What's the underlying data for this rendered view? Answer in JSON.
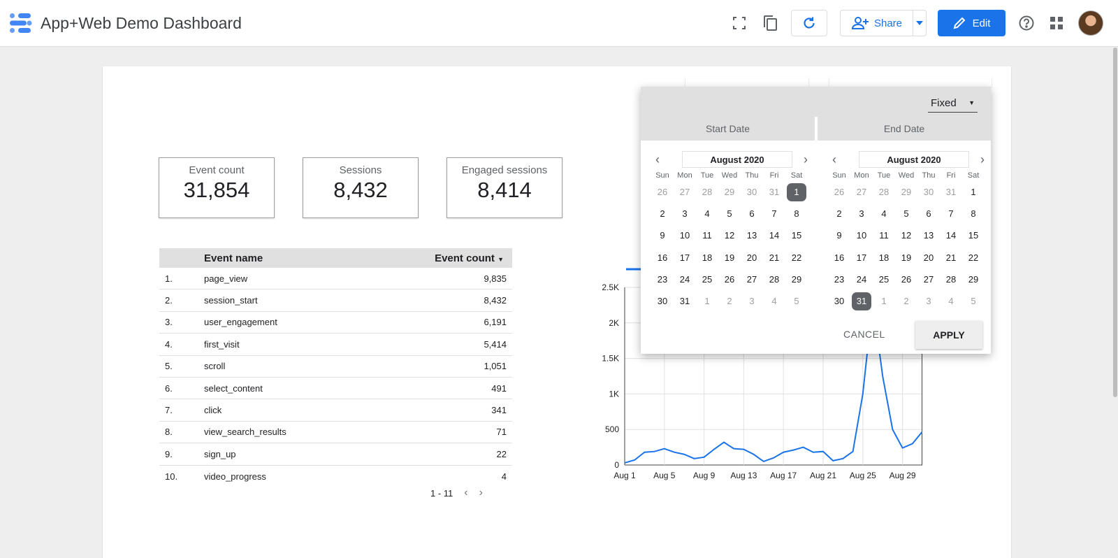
{
  "header": {
    "title": "App+Web Demo Dashboard",
    "share_label": "Share",
    "edit_label": "Edit"
  },
  "scorecards": [
    {
      "label": "Event count",
      "value": "31,854"
    },
    {
      "label": "Sessions",
      "value": "8,432"
    },
    {
      "label": "Engaged sessions",
      "value": "8,414"
    }
  ],
  "table": {
    "col_name": "Event name",
    "col_value": "Event count",
    "rows": [
      {
        "idx": "1.",
        "name": "page_view",
        "value": "9,835"
      },
      {
        "idx": "2.",
        "name": "session_start",
        "value": "8,432"
      },
      {
        "idx": "3.",
        "name": "user_engagement",
        "value": "6,191"
      },
      {
        "idx": "4.",
        "name": "first_visit",
        "value": "5,414"
      },
      {
        "idx": "5.",
        "name": "scroll",
        "value": "1,051"
      },
      {
        "idx": "6.",
        "name": "select_content",
        "value": "491"
      },
      {
        "idx": "7.",
        "name": "click",
        "value": "341"
      },
      {
        "idx": "8.",
        "name": "view_search_results",
        "value": "71"
      },
      {
        "idx": "9.",
        "name": "sign_up",
        "value": "22"
      },
      {
        "idx": "10.",
        "name": "video_progress",
        "value": "4"
      }
    ],
    "pager": "1 - 11"
  },
  "chart_data": {
    "type": "line",
    "x": [
      "Aug 1",
      "Aug 2",
      "Aug 3",
      "Aug 4",
      "Aug 5",
      "Aug 6",
      "Aug 7",
      "Aug 8",
      "Aug 9",
      "Aug 10",
      "Aug 11",
      "Aug 12",
      "Aug 13",
      "Aug 14",
      "Aug 15",
      "Aug 16",
      "Aug 17",
      "Aug 18",
      "Aug 19",
      "Aug 20",
      "Aug 21",
      "Aug 22",
      "Aug 23",
      "Aug 24",
      "Aug 25",
      "Aug 26",
      "Aug 27",
      "Aug 28",
      "Aug 29",
      "Aug 30",
      "Aug 31"
    ],
    "series": [
      {
        "values": [
          30,
          70,
          180,
          190,
          230,
          180,
          150,
          90,
          110,
          220,
          320,
          230,
          220,
          150,
          50,
          100,
          180,
          210,
          250,
          180,
          190,
          60,
          90,
          190,
          1000,
          2300,
          1250,
          500,
          240,
          300,
          470
        ]
      }
    ],
    "xticks": [
      "Aug 1",
      "Aug 5",
      "Aug 9",
      "Aug 13",
      "Aug 17",
      "Aug 21",
      "Aug 25",
      "Aug 29"
    ],
    "yticks": [
      "0",
      "500",
      "1K",
      "1.5K",
      "2K",
      "2.5K"
    ],
    "ylim": [
      0,
      2500
    ],
    "grid": true,
    "color": "#1a73e8"
  },
  "date_picker": {
    "mode": "Fixed",
    "start_label": "Start Date",
    "end_label": "End Date",
    "weekdays": [
      "Sun",
      "Mon",
      "Tue",
      "Wed",
      "Thu",
      "Fri",
      "Sat"
    ],
    "start": {
      "month": "August 2020",
      "days": [
        "26",
        "27",
        "28",
        "29",
        "30",
        "31",
        "1",
        "2",
        "3",
        "4",
        "5",
        "6",
        "7",
        "8",
        "9",
        "10",
        "11",
        "12",
        "13",
        "14",
        "15",
        "16",
        "17",
        "18",
        "19",
        "20",
        "21",
        "22",
        "23",
        "24",
        "25",
        "26",
        "27",
        "28",
        "29",
        "30",
        "31",
        "1",
        "2",
        "3",
        "4",
        "5"
      ],
      "selected": "1"
    },
    "end": {
      "month": "August 2020",
      "days": [
        "26",
        "27",
        "28",
        "29",
        "30",
        "31",
        "1",
        "2",
        "3",
        "4",
        "5",
        "6",
        "7",
        "8",
        "9",
        "10",
        "11",
        "12",
        "13",
        "14",
        "15",
        "16",
        "17",
        "18",
        "19",
        "20",
        "21",
        "22",
        "23",
        "24",
        "25",
        "26",
        "27",
        "28",
        "29",
        "30",
        "31",
        "1",
        "2",
        "3",
        "4",
        "5"
      ],
      "selected": "31"
    },
    "cancel_label": "CANCEL",
    "apply_label": "APPLY"
  }
}
